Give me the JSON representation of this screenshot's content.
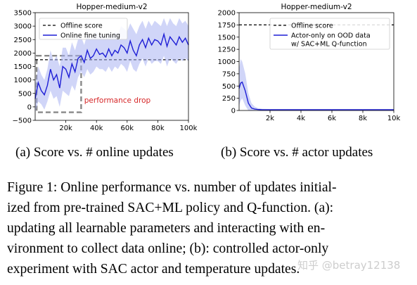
{
  "chart_data": [
    {
      "type": "line",
      "title": "Hopper-medium-v2",
      "xlabel": "",
      "ylabel": "",
      "xlim": [
        0,
        100000
      ],
      "ylim": [
        -500,
        3500
      ],
      "xticks": [
        20000,
        40000,
        60000,
        80000,
        100000
      ],
      "xtick_labels": [
        "20k",
        "40k",
        "60k",
        "80k",
        "100k"
      ],
      "yticks": [
        -500,
        0,
        500,
        1000,
        1500,
        2000,
        2500,
        3000,
        3500
      ],
      "ytick_labels": [
        "−500",
        "0",
        "500",
        "1000",
        "1500",
        "2000",
        "2500",
        "3000",
        "3500"
      ],
      "legend_position": "top-left",
      "series": [
        {
          "name": "Offline score",
          "style": "dashed",
          "color": "#000000",
          "x": [
            0,
            100000
          ],
          "values": [
            1750,
            1750
          ]
        },
        {
          "name": "Online fine tuning",
          "style": "solid",
          "color": "#1f1fd6",
          "band_color": "#aab3f2",
          "x": [
            0,
            2000,
            4000,
            6000,
            8000,
            10000,
            12000,
            14000,
            16000,
            18000,
            20000,
            22000,
            24000,
            26000,
            28000,
            30000,
            32000,
            34000,
            36000,
            38000,
            40000,
            42000,
            44000,
            46000,
            48000,
            50000,
            52000,
            54000,
            56000,
            58000,
            60000,
            62000,
            64000,
            66000,
            68000,
            70000,
            72000,
            74000,
            76000,
            78000,
            80000,
            82000,
            84000,
            86000,
            88000,
            90000,
            92000,
            94000,
            96000,
            98000,
            100000
          ],
          "values": [
            300,
            900,
            600,
            450,
            800,
            1400,
            1000,
            1200,
            700,
            1500,
            1400,
            1100,
            1600,
            1300,
            1800,
            1900,
            1650,
            2100,
            1800,
            1900,
            2150,
            1950,
            2000,
            1850,
            2150,
            1900,
            2100,
            2000,
            2300,
            2200,
            2000,
            2450,
            2100,
            1900,
            2300,
            2500,
            2200,
            2550,
            2300,
            2500,
            2450,
            2300,
            2700,
            2250,
            2600,
            2450,
            2300,
            2600,
            2400,
            2550,
            2300
          ],
          "lower": [
            -200,
            200,
            100,
            -100,
            200,
            600,
            300,
            400,
            0,
            600,
            500,
            400,
            800,
            600,
            1100,
            1300,
            1100,
            1400,
            1200,
            1300,
            1500,
            1400,
            1400,
            1300,
            1500,
            1300,
            1500,
            1400,
            1600,
            1500,
            1300,
            1700,
            1400,
            1300,
            1600,
            1800,
            1500,
            1800,
            1600,
            1700,
            1700,
            1600,
            1900,
            1500,
            1800,
            1700,
            1600,
            1800,
            1700,
            1800,
            1700
          ],
          "upper": [
            800,
            1500,
            1200,
            1000,
            1400,
            2100,
            1700,
            1900,
            1500,
            2200,
            2200,
            1900,
            2400,
            2100,
            2500,
            2600,
            2300,
            2700,
            2500,
            2600,
            2800,
            2600,
            2700,
            2500,
            2800,
            2600,
            2800,
            2700,
            3000,
            2900,
            2800,
            3100,
            2900,
            2700,
            3000,
            3200,
            2900,
            3200,
            3000,
            3200,
            3100,
            3000,
            3300,
            3000,
            3300,
            3100,
            3000,
            3300,
            3100,
            3200,
            3000
          ]
        }
      ],
      "annotations": [
        {
          "text": "performance drop",
          "color": "#d62728",
          "x": 32000,
          "y": 150
        }
      ],
      "highlight_box": {
        "x0": 1000,
        "x1": 30000,
        "y0": -200,
        "y1": 1900,
        "style": "dashed",
        "color": "#888888"
      }
    },
    {
      "type": "line",
      "title": "Hopper-medium-v2",
      "xlabel": "",
      "ylabel": "",
      "xlim": [
        0,
        10000
      ],
      "ylim": [
        0,
        2000
      ],
      "xticks": [
        2000,
        4000,
        6000,
        8000,
        10000
      ],
      "xtick_labels": [
        "2k",
        "4k",
        "6k",
        "8k",
        "10k"
      ],
      "yticks": [
        0,
        250,
        500,
        750,
        1000,
        1250,
        1500,
        1750,
        2000
      ],
      "ytick_labels": [
        "0",
        "250",
        "500",
        "750",
        "1000",
        "1250",
        "1500",
        "1750",
        "2000"
      ],
      "legend_position": "top-right",
      "series": [
        {
          "name": "Offline score",
          "style": "dashed",
          "color": "#000000",
          "x": [
            0,
            10000
          ],
          "values": [
            1750,
            1750
          ]
        },
        {
          "name": "Actor-only on OOD data\nw/ SAC+ML Q-function",
          "style": "solid",
          "color": "#1f1fd6",
          "band_color": "#aab3f2",
          "x": [
            0,
            100,
            200,
            400,
            600,
            800,
            1000,
            1200,
            1500,
            2000,
            3000,
            4000,
            5000,
            6000,
            7000,
            8000,
            9000,
            10000
          ],
          "values": [
            450,
            560,
            580,
            400,
            150,
            50,
            30,
            20,
            15,
            15,
            15,
            15,
            15,
            15,
            15,
            15,
            15,
            15
          ],
          "lower": [
            100,
            200,
            250,
            100,
            0,
            0,
            0,
            0,
            0,
            0,
            0,
            0,
            0,
            0,
            0,
            0,
            0,
            0
          ],
          "upper": [
            850,
            1050,
            1000,
            750,
            350,
            150,
            80,
            50,
            35,
            30,
            30,
            30,
            30,
            30,
            30,
            30,
            30,
            30
          ]
        }
      ]
    }
  ],
  "subcaptions": {
    "a": "(a) Score vs. # online updates",
    "b": "(b) Score vs. # actor updates"
  },
  "caption": {
    "lines": [
      "Figure 1: Online performance vs. number of updates initial-",
      "ized from pre-trained SAC+ML policy and Q-function. (a):",
      "updating all learnable parameters and interacting with en-",
      "vironment to collect data online; (b): controlled actor-only",
      "experiment with SAC actor and temperature updates."
    ]
  },
  "watermark": "知乎 @betray12138"
}
